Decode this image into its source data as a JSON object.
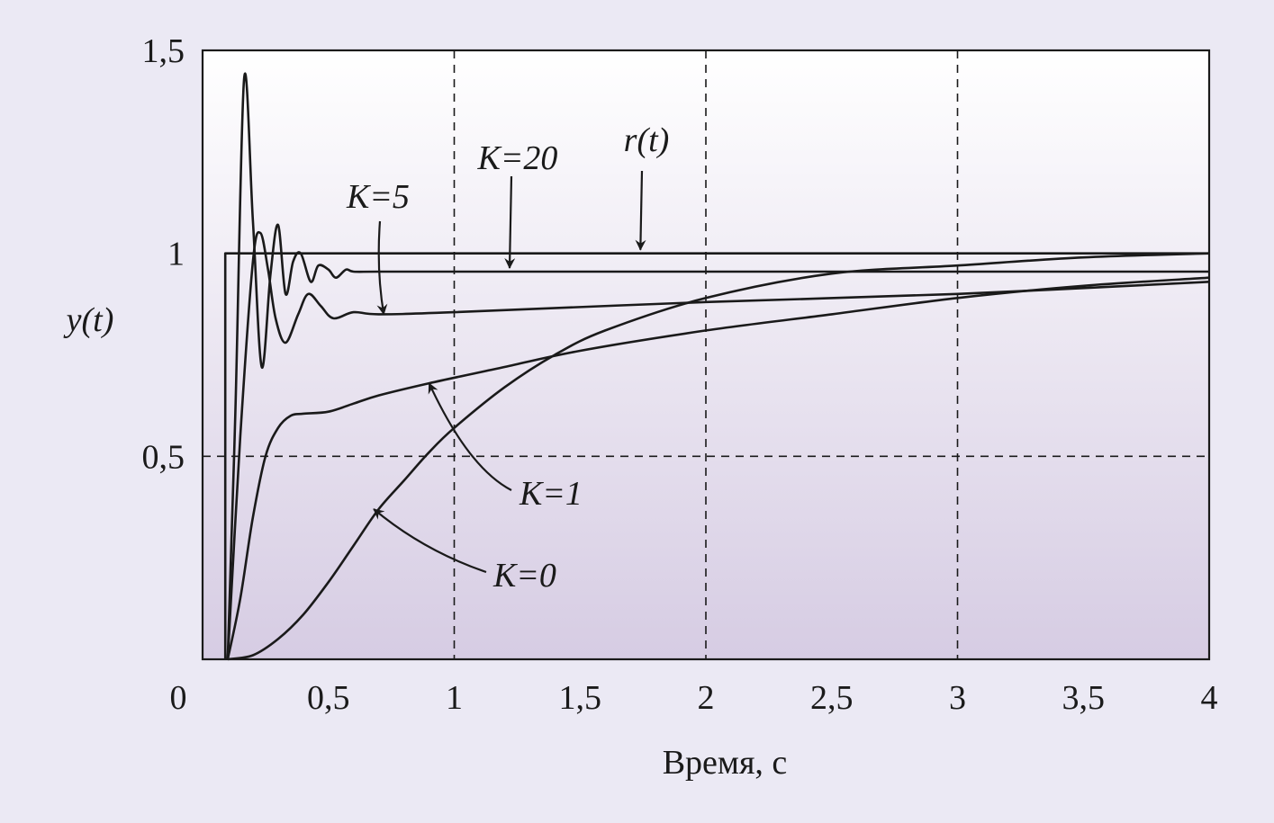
{
  "chart_data": {
    "type": "line",
    "xlabel": "Время, с",
    "ylabel": "y(t)",
    "xlim": [
      0,
      4
    ],
    "ylim": [
      0,
      1.5
    ],
    "x_ticks": [
      "0",
      "0,5",
      "1",
      "1,5",
      "2",
      "2,5",
      "3",
      "3,5",
      "4"
    ],
    "x_tick_values": [
      0,
      0.5,
      1,
      1.5,
      2,
      2.5,
      3,
      3.5,
      4
    ],
    "y_ticks": [
      "0,5",
      "1",
      "1,5"
    ],
    "y_tick_values": [
      0.5,
      1,
      1.5
    ],
    "grid": "dashed at x = 1, 2, 3 and y = 0.5",
    "series": [
      {
        "name": "r(t)",
        "x": [
          0.09,
          0.09,
          4.0
        ],
        "y": [
          0.0,
          1.0,
          1.0
        ]
      },
      {
        "name": "K=20",
        "x": [
          0.1,
          0.13,
          0.165,
          0.2,
          0.235,
          0.27,
          0.3,
          0.33,
          0.36,
          0.39,
          0.43,
          0.46,
          0.5,
          0.53,
          0.57,
          0.6,
          0.7,
          1.0,
          2.0,
          4.0
        ],
        "y": [
          0.0,
          0.6,
          1.43,
          1.08,
          0.72,
          0.95,
          1.07,
          0.9,
          0.98,
          1.0,
          0.93,
          0.97,
          0.96,
          0.94,
          0.96,
          0.955,
          0.955,
          0.955,
          0.955,
          0.955
        ]
      },
      {
        "name": "K=5",
        "x": [
          0.1,
          0.15,
          0.2,
          0.23,
          0.26,
          0.29,
          0.33,
          0.38,
          0.42,
          0.47,
          0.52,
          0.6,
          0.7,
          1.0,
          2.0,
          3.0,
          4.0
        ],
        "y": [
          0.0,
          0.55,
          0.98,
          1.05,
          0.96,
          0.84,
          0.78,
          0.85,
          0.9,
          0.87,
          0.84,
          0.855,
          0.85,
          0.855,
          0.88,
          0.9,
          0.93
        ]
      },
      {
        "name": "K=1",
        "x": [
          0.1,
          0.15,
          0.2,
          0.25,
          0.3,
          0.35,
          0.4,
          0.5,
          0.6,
          0.7,
          0.9,
          1.2,
          1.5,
          2.0,
          2.5,
          3.0,
          3.5,
          4.0
        ],
        "y": [
          0.0,
          0.15,
          0.35,
          0.5,
          0.57,
          0.6,
          0.605,
          0.61,
          0.63,
          0.65,
          0.68,
          0.72,
          0.76,
          0.81,
          0.85,
          0.89,
          0.92,
          0.94
        ]
      },
      {
        "name": "K=0",
        "x": [
          0.1,
          0.2,
          0.3,
          0.4,
          0.5,
          0.6,
          0.7,
          0.8,
          0.9,
          1.0,
          1.2,
          1.4,
          1.6,
          2.0,
          2.5,
          3.0,
          3.5,
          4.0
        ],
        "y": [
          0.0,
          0.01,
          0.05,
          0.11,
          0.19,
          0.28,
          0.37,
          0.44,
          0.51,
          0.57,
          0.67,
          0.75,
          0.81,
          0.89,
          0.95,
          0.97,
          0.99,
          1.0
        ]
      }
    ],
    "annotations": [
      {
        "text": "r(t)",
        "points_to_x": 1.74,
        "points_to_y": 1.0
      },
      {
        "text": "К=20",
        "points_to_x": 1.22,
        "points_to_y": 0.955
      },
      {
        "text": "К=5",
        "points_to_x": 0.72,
        "points_to_y": 0.85
      },
      {
        "text": "К=1",
        "points_to_x": 0.9,
        "points_to_y": 0.68
      },
      {
        "text": "К=0",
        "points_to_x": 0.68,
        "points_to_y": 0.37
      }
    ]
  }
}
